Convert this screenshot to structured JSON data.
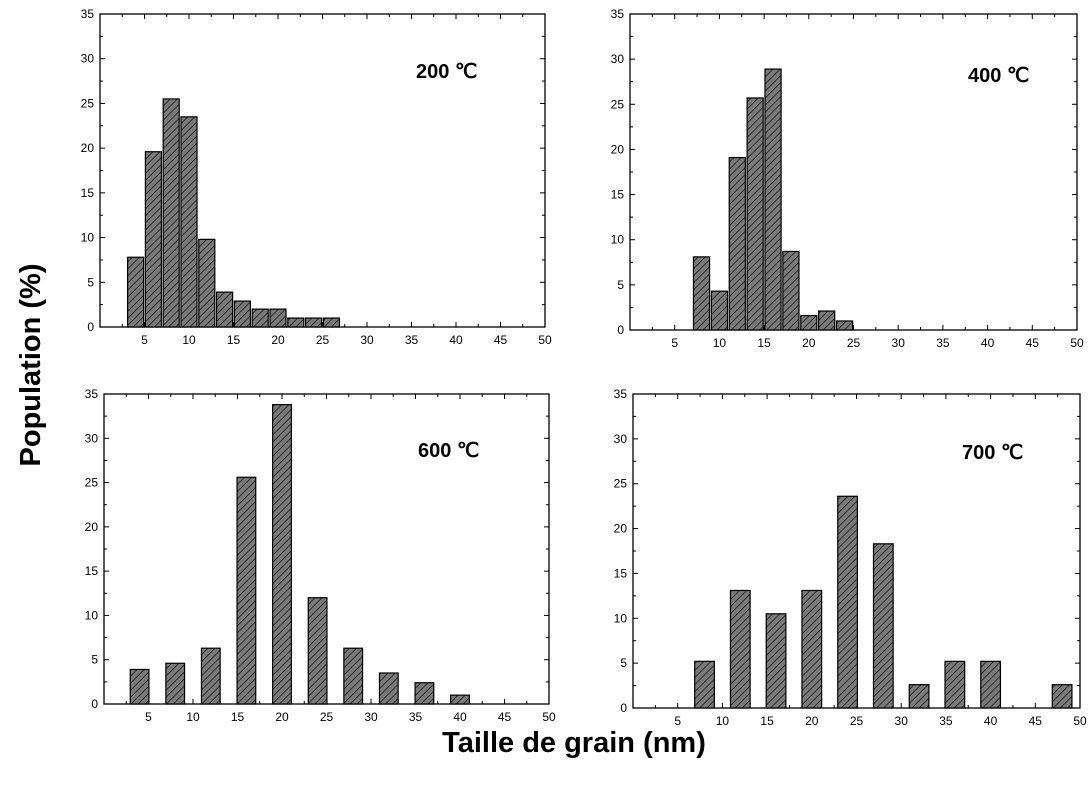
{
  "ylabel": "Population (%)",
  "xlabel": "Taille de grain (nm)",
  "chart_data": [
    {
      "type": "bar",
      "label": "200 ℃",
      "xlim": [
        0,
        50
      ],
      "ylim": [
        0,
        35
      ],
      "bar_width": 1.8,
      "x": [
        4,
        6,
        8,
        10,
        12,
        14,
        16,
        18,
        20,
        22,
        24,
        26
      ],
      "values": [
        7.8,
        19.6,
        25.5,
        23.5,
        9.8,
        3.9,
        2.9,
        2.0,
        2.0,
        1.0,
        1.0,
        1.0
      ]
    },
    {
      "type": "bar",
      "label": "400 ℃",
      "xlim": [
        0,
        50
      ],
      "ylim": [
        0,
        35
      ],
      "bar_width": 1.8,
      "x": [
        8,
        10,
        12,
        14,
        16,
        18,
        20,
        22,
        24
      ],
      "values": [
        8.1,
        4.3,
        19.1,
        25.7,
        28.9,
        8.7,
        1.6,
        2.1,
        1.0
      ]
    },
    {
      "type": "bar",
      "label": "600 ℃",
      "xlim": [
        0,
        50
      ],
      "ylim": [
        0,
        35
      ],
      "bar_width": 2.1,
      "x": [
        4,
        8,
        12,
        16,
        20,
        24,
        28,
        32,
        36,
        40
      ],
      "values": [
        3.9,
        4.6,
        6.3,
        25.6,
        33.8,
        12.0,
        6.3,
        3.5,
        2.4,
        1.0
      ]
    },
    {
      "type": "bar",
      "label": "700 ℃",
      "xlim": [
        0,
        50
      ],
      "ylim": [
        0,
        35
      ],
      "bar_width": 2.2,
      "x": [
        8,
        12,
        16,
        20,
        24,
        28,
        32,
        36,
        40,
        48
      ],
      "values": [
        5.2,
        13.1,
        10.5,
        13.1,
        23.6,
        18.3,
        2.6,
        5.2,
        5.2,
        2.6
      ]
    }
  ]
}
